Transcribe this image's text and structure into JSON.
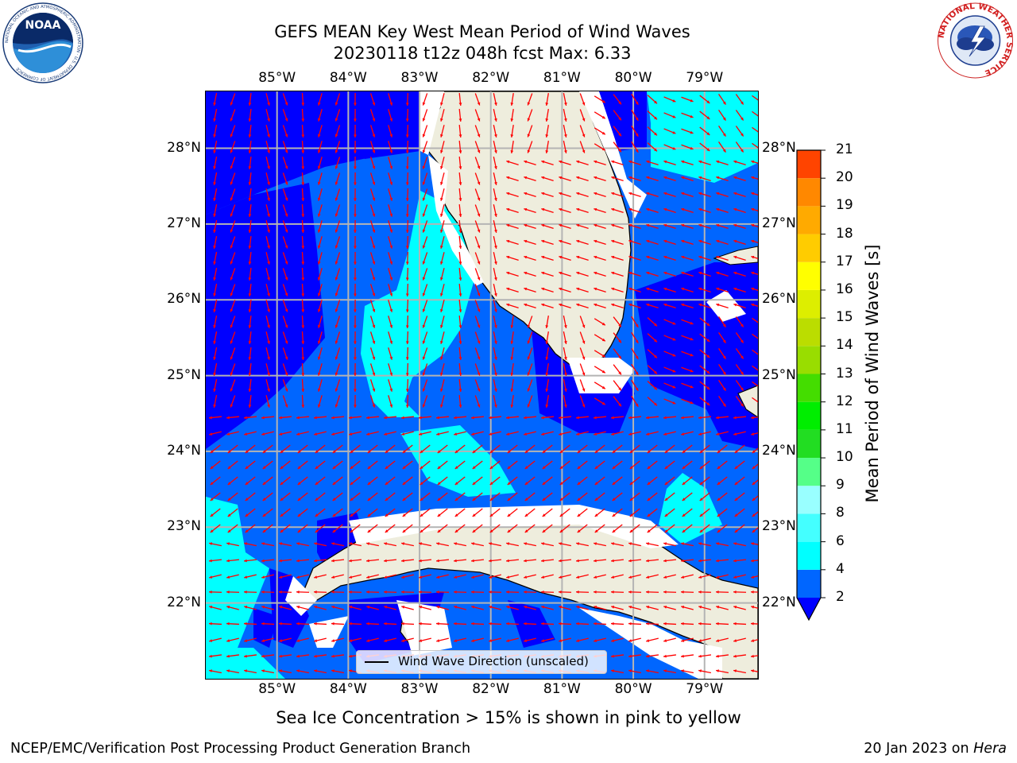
{
  "header": {
    "title_line1": "GEFS MEAN Key West Mean Period of Wind Waves",
    "title_line2": "20230118 t12z 048h fcst   Max: 6.33"
  },
  "logos": {
    "noaa_text": "NOAA",
    "noaa_ring": "NATIONAL OCEANIC AND ATMOSPHERIC ADMINISTRATION · U.S. DEPARTMENT OF COMMERCE",
    "nws_ring": "NATIONAL WEATHER SERVICE"
  },
  "map": {
    "lon_ticks": [
      "85°W",
      "84°W",
      "83°W",
      "82°W",
      "81°W",
      "80°W",
      "79°W"
    ],
    "lat_ticks": [
      "28°N",
      "27°N",
      "26°N",
      "25°N",
      "24°N",
      "23°N",
      "22°N"
    ],
    "legend_label": "Wind Wave Direction (unscaled)",
    "extent": {
      "lon": [
        -86.0,
        -78.25
      ],
      "lat": [
        21.0,
        28.75
      ]
    },
    "land_color": "#eeeddd",
    "arrow_color": "#ff0000",
    "grid": true
  },
  "colorbar": {
    "label": "Mean Period of Wind Waves [s]",
    "ticks": [
      "2",
      "4",
      "6",
      "8",
      "9",
      "10",
      "11",
      "12",
      "13",
      "14",
      "15",
      "16",
      "17",
      "18",
      "19",
      "20",
      "21"
    ],
    "levels": [
      2,
      4,
      6,
      8,
      9,
      10,
      11,
      12,
      13,
      14,
      15,
      16,
      17,
      18,
      19,
      20,
      21
    ],
    "colors": [
      "#0066ff",
      "#00ffff",
      "#44ffff",
      "#99ffff",
      "#55ff88",
      "#22dd22",
      "#00ee00",
      "#44dd00",
      "#99dd00",
      "#bbdd00",
      "#ddee00",
      "#ffff00",
      "#ffcc00",
      "#ffaa00",
      "#ff8800",
      "#ff4400",
      "#ff0000"
    ],
    "extend_color": "#0000ff"
  },
  "notes": {
    "ice": "Sea Ice Concentration > 15% is shown in pink to yellow"
  },
  "footer": {
    "left": "NCEP/EMC/Verification Post Processing Product Generation Branch",
    "date": "20 Jan 2023 on ",
    "system": "Hera"
  }
}
